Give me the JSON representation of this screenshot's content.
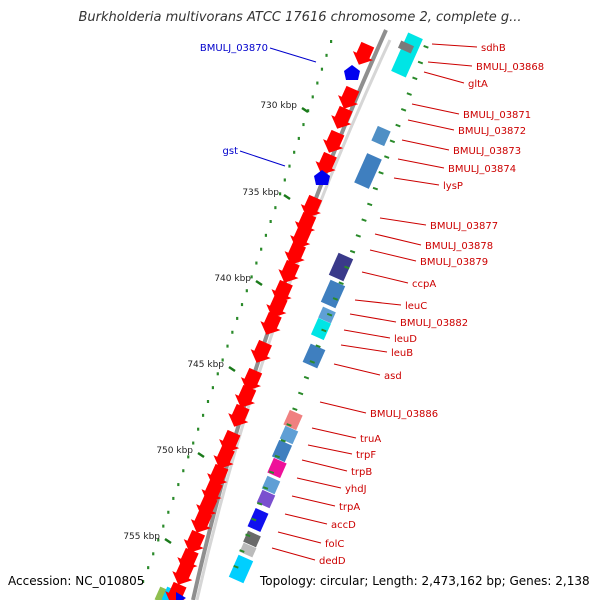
{
  "title": "Burkholderia multivorans ATCC 17616 chromosome 2, complete g...",
  "footer": {
    "accession": "Accession: NC_010805",
    "summary": "Topology: circular; Length: 2,473,162 bp; Genes: 2,138"
  },
  "colors": {
    "backbone": "#9a9a9a",
    "gene_forward": "#ff0000",
    "label_red": "#cc0000",
    "label_blue": "#0000cc",
    "tick": "#1a7a1a",
    "dots": "#2a8a2a"
  },
  "ticks": [
    {
      "label": "730 kbp"
    },
    {
      "label": "735 kbp"
    },
    {
      "label": "740 kbp"
    },
    {
      "label": "745 kbp"
    },
    {
      "label": "750 kbp"
    },
    {
      "label": "755 kbp"
    }
  ],
  "genes_right": [
    {
      "name": "sdhB",
      "color": "#ff0000"
    },
    {
      "name": "BMULJ_03868",
      "color": "#ff0000"
    },
    {
      "name": "gltA",
      "color": "#ff0000"
    },
    {
      "name": "BMULJ_03871",
      "color": "#ff0000"
    },
    {
      "name": "BMULJ_03872",
      "color": "#ff0000"
    },
    {
      "name": "BMULJ_03873",
      "color": "#ff0000"
    },
    {
      "name": "BMULJ_03874",
      "color": "#ff0000"
    },
    {
      "name": "lysP",
      "color": "#ff0000"
    },
    {
      "name": "BMULJ_03877",
      "color": "#ff0000"
    },
    {
      "name": "BMULJ_03878",
      "color": "#ff0000"
    },
    {
      "name": "BMULJ_03879",
      "color": "#ff0000"
    },
    {
      "name": "ccpA",
      "color": "#ff0000"
    },
    {
      "name": "leuC",
      "color": "#ff0000"
    },
    {
      "name": "BMULJ_03882",
      "color": "#ff0000"
    },
    {
      "name": "leuD",
      "color": "#ff0000"
    },
    {
      "name": "leuB",
      "color": "#ff0000"
    },
    {
      "name": "asd",
      "color": "#ff0000"
    },
    {
      "name": "BMULJ_03886",
      "color": "#ff0000"
    },
    {
      "name": "truA",
      "color": "#ff0000"
    },
    {
      "name": "trpF",
      "color": "#ff0000"
    },
    {
      "name": "trpB",
      "color": "#ff0000"
    },
    {
      "name": "yhdJ",
      "color": "#ff0000"
    },
    {
      "name": "trpA",
      "color": "#ff0000"
    },
    {
      "name": "accD",
      "color": "#ff0000"
    },
    {
      "name": "folC",
      "color": "#ff0000"
    },
    {
      "name": "dedD",
      "color": "#ff0000"
    }
  ],
  "genes_left": [
    {
      "name": "BMULJ_03870",
      "color": "#0000ff"
    },
    {
      "name": "gst",
      "color": "#0000ff"
    }
  ]
}
